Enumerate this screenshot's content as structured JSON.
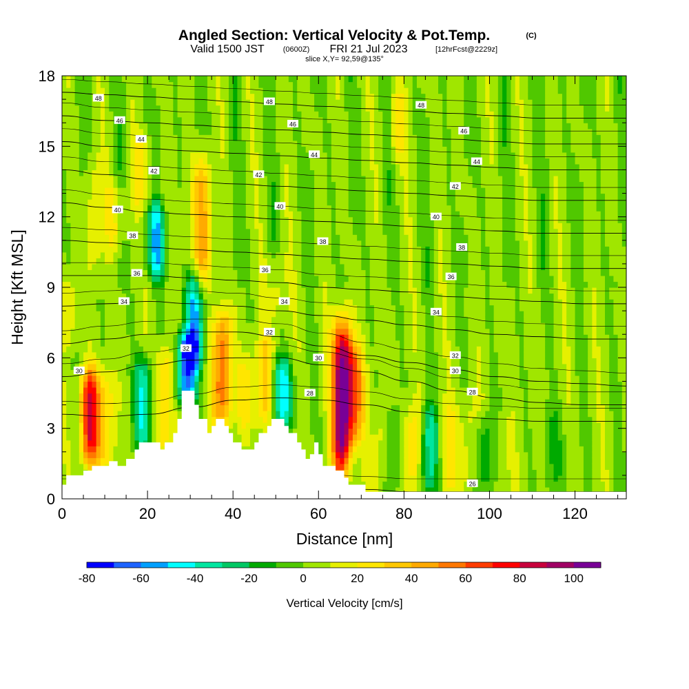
{
  "chart_data": {
    "type": "heatmap",
    "title": {
      "main": "Angled Section: Vertical Velocity & Pot.Temp.",
      "copyright": "(C)",
      "valid_prefix": "Valid 1500 JST",
      "valid_zulu": "(0600Z)",
      "valid_date": "FRI 21 Jul 2023",
      "forecast": "[12hrFcst@2229z]",
      "slice": "slice X,Y= 92,59@135°"
    },
    "xlabel": "Distance [nm]",
    "ylabel": "Height [Kft MSL]",
    "xlim": [
      0,
      132
    ],
    "ylim": [
      0,
      18
    ],
    "x_ticks": [
      0,
      20,
      40,
      60,
      80,
      100,
      120
    ],
    "y_ticks": [
      0,
      3,
      6,
      9,
      12,
      15,
      18
    ],
    "colorbar": {
      "label": "Vertical Velocity [cm/s]",
      "min": -80,
      "max": 110,
      "step": 10,
      "ticks": [
        -80,
        -60,
        -40,
        -20,
        0,
        20,
        40,
        60,
        80,
        100
      ],
      "colors": [
        "#0000ff",
        "#1e64ff",
        "#00a0ff",
        "#00ffff",
        "#00e6a0",
        "#00c864",
        "#00aa00",
        "#50c800",
        "#a0e600",
        "#e6f000",
        "#ffe600",
        "#ffc800",
        "#ffaa00",
        "#ff7800",
        "#ff3c00",
        "#ff0000",
        "#c8003c",
        "#a00064",
        "#780096"
      ]
    },
    "background_field": {
      "base_cm_s": 5,
      "features": [
        {
          "x": 6.5,
          "z_from": 2,
          "z_to": 5,
          "peak_cm_s": 80
        },
        {
          "x": 10.5,
          "z_from": 1.5,
          "z_to": 5,
          "peak_cm_s": 30
        },
        {
          "x": 19,
          "z_from": 2.5,
          "z_to": 5.5,
          "peak_cm_s": -40
        },
        {
          "x": 24,
          "z_from": 2.5,
          "z_to": 6,
          "peak_cm_s": 35
        },
        {
          "x": 29,
          "z_from": 4.5,
          "z_to": 6.5,
          "peak_cm_s": -65
        },
        {
          "x": 31,
          "z_from": 6,
          "z_to": 9,
          "peak_cm_s": -50
        },
        {
          "x": 32.5,
          "z_from": 9.5,
          "z_to": 14,
          "peak_cm_s": 50
        },
        {
          "x": 37.5,
          "z_from": 3.5,
          "z_to": 7.5,
          "peak_cm_s": 60
        },
        {
          "x": 43,
          "z_from": 3.5,
          "z_to": 5.5,
          "peak_cm_s": 25
        },
        {
          "x": 47.5,
          "z_from": 3.5,
          "z_to": 6.5,
          "peak_cm_s": 35
        },
        {
          "x": 51.5,
          "z_from": 3.5,
          "z_to": 5.5,
          "peak_cm_s": -45
        },
        {
          "x": 65.5,
          "z_from": 1.5,
          "z_to": 7,
          "peak_cm_s": 110
        },
        {
          "x": 68.5,
          "z_from": 3,
          "z_to": 6,
          "peak_cm_s": 50
        },
        {
          "x": 75,
          "z_from": 0.5,
          "z_to": 3.5,
          "peak_cm_s": 25
        },
        {
          "x": 77,
          "z_from": 0.5,
          "z_to": 3.5,
          "peak_cm_s": -20
        },
        {
          "x": 82,
          "z_from": 0.5,
          "z_to": 3.5,
          "peak_cm_s": 30
        },
        {
          "x": 86,
          "z_from": 0.5,
          "z_to": 3.5,
          "peak_cm_s": -35
        },
        {
          "x": 90,
          "z_from": 0.5,
          "z_to": 3.5,
          "peak_cm_s": 25
        },
        {
          "x": 95,
          "z_from": 0.5,
          "z_to": 4,
          "peak_cm_s": 20
        },
        {
          "x": 99,
          "z_from": 0.5,
          "z_to": 3,
          "peak_cm_s": -20
        },
        {
          "x": 103,
          "z_from": 0.5,
          "z_to": 3,
          "peak_cm_s": 15
        },
        {
          "x": 115,
          "z_from": 0.5,
          "z_to": 3.5,
          "peak_cm_s": -10
        },
        {
          "x": 7.5,
          "z_from": 10,
          "z_to": 14,
          "peak_cm_s": 20
        },
        {
          "x": 12.5,
          "z_from": 11,
          "z_to": 13,
          "peak_cm_s": 25
        },
        {
          "x": 18.5,
          "z_from": 13,
          "z_to": 15,
          "peak_cm_s": 25
        },
        {
          "x": 22,
          "z_from": 10,
          "z_to": 12,
          "peak_cm_s": -40
        },
        {
          "x": 50,
          "z_from": 8,
          "z_to": 10,
          "peak_cm_s": 20
        },
        {
          "x": 78.5,
          "z_from": 15,
          "z_to": 17,
          "peak_cm_s": 25
        },
        {
          "x": 1.5,
          "z_from": 7,
          "z_to": 9,
          "peak_cm_s": 20
        }
      ]
    },
    "terrain_kft": [
      [
        0,
        0.6
      ],
      [
        1,
        0.6
      ],
      [
        1,
        1.0
      ],
      [
        5,
        1.0
      ],
      [
        5,
        1.2
      ],
      [
        7,
        1.2
      ],
      [
        7,
        1.4
      ],
      [
        11,
        1.4
      ],
      [
        11,
        1.6
      ],
      [
        13,
        1.6
      ],
      [
        13,
        1.4
      ],
      [
        15,
        1.4
      ],
      [
        15,
        1.7
      ],
      [
        17,
        1.7
      ],
      [
        17,
        2.1
      ],
      [
        18,
        2.1
      ],
      [
        18,
        2.4
      ],
      [
        23,
        2.4
      ],
      [
        23,
        2.1
      ],
      [
        24,
        2.1
      ],
      [
        24,
        2.4
      ],
      [
        26,
        2.4
      ],
      [
        26,
        2.8
      ],
      [
        27,
        2.8
      ],
      [
        27,
        3.4
      ],
      [
        28,
        3.4
      ],
      [
        28,
        4.6
      ],
      [
        31,
        4.6
      ],
      [
        31,
        4.0
      ],
      [
        32,
        4.0
      ],
      [
        32,
        3.4
      ],
      [
        34,
        3.4
      ],
      [
        34,
        2.8
      ],
      [
        35,
        2.8
      ],
      [
        35,
        3.1
      ],
      [
        36,
        3.1
      ],
      [
        36,
        3.4
      ],
      [
        38,
        3.4
      ],
      [
        38,
        3.1
      ],
      [
        39,
        3.1
      ],
      [
        39,
        2.8
      ],
      [
        40,
        2.8
      ],
      [
        40,
        2.4
      ],
      [
        42,
        2.4
      ],
      [
        42,
        2.1
      ],
      [
        45,
        2.1
      ],
      [
        45,
        2.4
      ],
      [
        46,
        2.4
      ],
      [
        46,
        2.8
      ],
      [
        48,
        2.8
      ],
      [
        48,
        3.1
      ],
      [
        49,
        3.1
      ],
      [
        49,
        3.4
      ],
      [
        52,
        3.4
      ],
      [
        52,
        3.1
      ],
      [
        53,
        3.1
      ],
      [
        53,
        2.8
      ],
      [
        55,
        2.8
      ],
      [
        55,
        2.4
      ],
      [
        56,
        2.4
      ],
      [
        56,
        2.1
      ],
      [
        57,
        2.1
      ],
      [
        57,
        1.7
      ],
      [
        58,
        1.7
      ],
      [
        58,
        1.9
      ],
      [
        59,
        1.9
      ],
      [
        59,
        2.4
      ],
      [
        60,
        2.4
      ],
      [
        60,
        1.9
      ],
      [
        61,
        1.9
      ],
      [
        61,
        1.4
      ],
      [
        64,
        1.4
      ],
      [
        64,
        1.2
      ],
      [
        66,
        1.2
      ],
      [
        66,
        0.9
      ],
      [
        67,
        0.9
      ],
      [
        67,
        0.6
      ],
      [
        71,
        0.6
      ],
      [
        71,
        0.3
      ],
      [
        132,
        0.3
      ]
    ],
    "isentropes": [
      {
        "name": "26",
        "heights_kft": [
          0.3,
          0.3,
          0.4,
          0.5,
          0.6,
          0.6,
          0.5,
          0.4,
          0.3,
          0.3,
          0.3,
          0.3,
          0.3,
          0.3
        ]
      },
      {
        "name": "28",
        "heights_kft": [
          3.6,
          3.5,
          3.6,
          3.9,
          4.2,
          4.3,
          4.2,
          4.0,
          3.7,
          3.5,
          3.4,
          3.3,
          3.3,
          3.3
        ]
      },
      {
        "name": "30",
        "heights_kft": [
          5.2,
          5.4,
          5.7,
          5.9,
          6.0,
          6.0,
          5.7,
          5.4,
          5.0,
          4.6,
          4.3,
          4.1,
          4.0,
          4.0
        ]
      },
      {
        "name": "32",
        "heights_kft": [
          6.6,
          6.8,
          7.0,
          7.1,
          7.1,
          6.9,
          6.5,
          6.1,
          5.8,
          5.5,
          5.2,
          5.0,
          4.9,
          4.8
        ]
      },
      {
        "name": "34",
        "heights_kft": [
          8.2,
          8.3,
          8.4,
          8.3,
          8.2,
          8.0,
          7.8,
          7.6,
          7.4,
          7.2,
          7.0,
          6.9,
          6.8,
          6.8
        ]
      },
      {
        "name": "36",
        "heights_kft": [
          9.5,
          9.5,
          9.5,
          9.4,
          9.3,
          9.2,
          9.0,
          8.9,
          8.8,
          8.6,
          8.5,
          8.4,
          8.3,
          8.3
        ]
      },
      {
        "name": "38",
        "heights_kft": [
          11.0,
          10.9,
          10.7,
          10.6,
          10.5,
          10.4,
          10.3,
          10.2,
          10.1,
          10.0,
          9.9,
          9.8,
          9.8,
          9.8
        ]
      },
      {
        "name": "40",
        "heights_kft": [
          12.6,
          12.4,
          12.2,
          12.1,
          12.0,
          11.9,
          11.8,
          11.7,
          11.6,
          11.5,
          11.4,
          11.3,
          11.3,
          11.3
        ]
      },
      {
        "name": "42",
        "heights_kft": [
          14.0,
          13.8,
          13.6,
          13.5,
          13.4,
          13.3,
          13.2,
          13.1,
          13.0,
          12.9,
          12.8,
          12.7,
          12.7,
          12.7
        ]
      },
      {
        "name": "44",
        "heights_kft": [
          15.2,
          15.0,
          14.9,
          14.8,
          14.7,
          14.6,
          14.5,
          14.4,
          14.3,
          14.2,
          14.1,
          14.0,
          14.0,
          14.0
        ]
      },
      {
        "name": "46",
        "heights_kft": [
          16.3,
          16.1,
          16.0,
          15.9,
          15.8,
          15.7,
          15.6,
          15.5,
          15.4,
          15.3,
          15.2,
          15.1,
          15.1,
          15.1
        ]
      },
      {
        "name": "48",
        "heights_kft": [
          17.3,
          17.2,
          17.1,
          17.0,
          16.9,
          16.8,
          16.7,
          16.6,
          16.5,
          16.4,
          16.3,
          16.2,
          16.2,
          16.2
        ]
      }
    ],
    "contour_labels": [
      {
        "text": "48",
        "x": 8.5,
        "y": 17.05
      },
      {
        "text": "48",
        "x": 48.5,
        "y": 16.9
      },
      {
        "text": "48",
        "x": 84,
        "y": 16.75
      },
      {
        "text": "46",
        "x": 13.5,
        "y": 16.1
      },
      {
        "text": "46",
        "x": 54,
        "y": 15.95
      },
      {
        "text": "46",
        "x": 94,
        "y": 15.65
      },
      {
        "text": "44",
        "x": 18.5,
        "y": 15.3
      },
      {
        "text": "44",
        "x": 59,
        "y": 14.65
      },
      {
        "text": "44",
        "x": 97,
        "y": 14.35
      },
      {
        "text": "42",
        "x": 21.5,
        "y": 13.95
      },
      {
        "text": "42",
        "x": 46,
        "y": 13.8
      },
      {
        "text": "42",
        "x": 92,
        "y": 13.3
      },
      {
        "text": "40",
        "x": 13,
        "y": 12.3
      },
      {
        "text": "40",
        "x": 51,
        "y": 12.45
      },
      {
        "text": "40",
        "x": 87.5,
        "y": 12.0
      },
      {
        "text": "38",
        "x": 16.5,
        "y": 11.2
      },
      {
        "text": "38",
        "x": 61,
        "y": 10.95
      },
      {
        "text": "38",
        "x": 93.5,
        "y": 10.7
      },
      {
        "text": "36",
        "x": 17.5,
        "y": 9.6
      },
      {
        "text": "36",
        "x": 47.5,
        "y": 9.75
      },
      {
        "text": "36",
        "x": 91,
        "y": 9.45
      },
      {
        "text": "34",
        "x": 14.5,
        "y": 8.4
      },
      {
        "text": "34",
        "x": 52,
        "y": 8.4
      },
      {
        "text": "34",
        "x": 87.5,
        "y": 7.95
      },
      {
        "text": "32",
        "x": 29,
        "y": 6.4
      },
      {
        "text": "32",
        "x": 48.5,
        "y": 7.1
      },
      {
        "text": "32",
        "x": 92,
        "y": 6.1
      },
      {
        "text": "30",
        "x": 4,
        "y": 5.45
      },
      {
        "text": "30",
        "x": 60,
        "y": 6.0
      },
      {
        "text": "30",
        "x": 92,
        "y": 5.45
      },
      {
        "text": "28",
        "x": 58,
        "y": 4.5
      },
      {
        "text": "28",
        "x": 96,
        "y": 4.55
      },
      {
        "text": "26",
        "x": 96,
        "y": 0.65
      }
    ]
  }
}
